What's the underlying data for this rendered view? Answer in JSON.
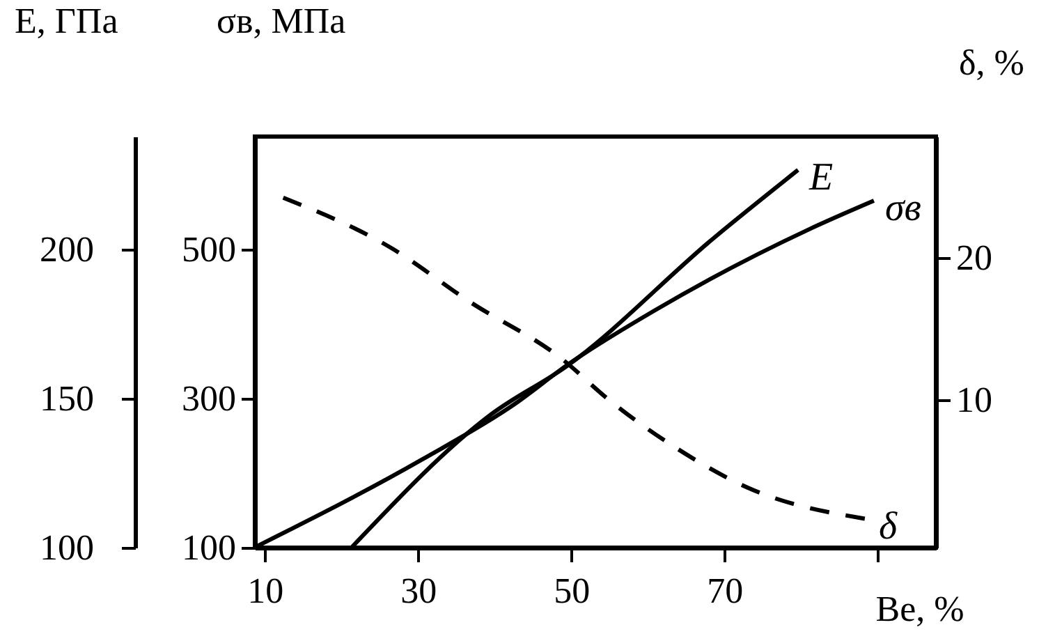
{
  "chart_data": {
    "type": "line",
    "xlabel": "Be, %",
    "ylabel": "E, ГПа",
    "y2label": "σв, МПа",
    "y3label": "δ, %",
    "xlim": [
      8.7,
      97.6
    ],
    "xticks": [
      10,
      30,
      50,
      70,
      {
        "value": 90,
        "label": null
      }
    ],
    "ylim": [
      100,
      237.8
    ],
    "yticks": [
      100,
      150,
      200
    ],
    "y2lim": [
      100,
      651
    ],
    "y2ticks": [
      100,
      300,
      500
    ],
    "y3lim": [
      -0.4,
      28.5
    ],
    "y3ticks": [
      10,
      20
    ],
    "grid": false,
    "marker": "none",
    "series": [
      {
        "name": "E",
        "color": "#000000",
        "line_style": "solid",
        "x": [
          21.3,
          39.6,
          49.5,
          68.7,
          79.6
        ],
        "values": [
          100,
          144.8,
          161,
          204,
          226.6
        ]
      },
      {
        "name": "σв",
        "color": "#000000",
        "line_style": "solid",
        "axis": "y2",
        "x": [
          9,
          30.5,
          42.7,
          49.5,
          60.9,
          80.9,
          89.5
        ],
        "values": [
          102,
          218,
          293,
          345,
          418,
          526,
          565
        ]
      },
      {
        "name": "δ",
        "color": "#000000",
        "line_style": "dashed",
        "axis": "y3",
        "x": [
          12.4,
          26.4,
          36.7,
          48.7,
          54.9,
          64.0,
          73.1,
          88.7
        ],
        "values": [
          24.2,
          20.7,
          16.9,
          12.9,
          10.0,
          6.5,
          3.8,
          1.6
        ]
      }
    ]
  }
}
